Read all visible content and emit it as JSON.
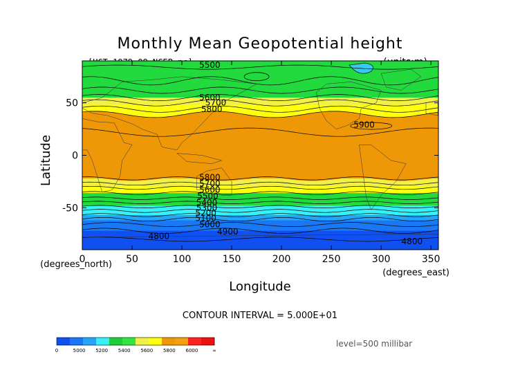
{
  "chart_data": {
    "type": "heatmap",
    "title": "Monthly Mean Geopotential height",
    "file_label": "[HGT_1979-08_NCEP.nc]",
    "units_label": "(units:m)",
    "xlabel": "Longitude",
    "ylabel": "Latitude",
    "x_unit_label": "(degrees_east)",
    "y_unit_label": "(degrees_north)",
    "xlim": [
      0,
      357.5
    ],
    "ylim": [
      -90,
      90
    ],
    "xticks": [
      0,
      50,
      100,
      150,
      200,
      250,
      300,
      350
    ],
    "yticks": [
      50,
      0,
      -50
    ],
    "contour_interval_label": "CONTOUR INTERVAL = 5.000E+01",
    "level_label": "level=500 millibar",
    "colorbar": {
      "tick_labels": [
        "0",
        "5000",
        "5200",
        "5400",
        "5600",
        "5800",
        "6000",
        "∞"
      ],
      "colors": [
        "#1050f0",
        "#1a78f5",
        "#24a5f8",
        "#38f0f8",
        "#1fcc3a",
        "#35e43c",
        "#f0f048",
        "#ffff10",
        "#ee9808",
        "#f4a010",
        "#ff2020",
        "#ee1010"
      ]
    },
    "zonal_bands": [
      {
        "from_lat": 90,
        "to_lat": 65,
        "range": "5400-5500",
        "color": "#22d93e"
      },
      {
        "from_lat": 65,
        "to_lat": 55,
        "range": "5500-5600",
        "color": "#22d93e"
      },
      {
        "from_lat": 55,
        "to_lat": 48,
        "range": "5600-5700",
        "color": "#f0f048"
      },
      {
        "from_lat": 48,
        "to_lat": 40,
        "range": "5700-5800",
        "color": "#ffff10"
      },
      {
        "from_lat": 40,
        "to_lat": -22,
        "range": "5800-5900",
        "color": "#ee9808"
      },
      {
        "from_lat": -22,
        "to_lat": -30,
        "range": "5700-5800",
        "color": "#f0f048"
      },
      {
        "from_lat": -30,
        "to_lat": -36,
        "range": "5600-5700",
        "color": "#ffff10"
      },
      {
        "from_lat": -36,
        "to_lat": -48,
        "range": "5500-5600",
        "color": "#22d93e"
      },
      {
        "from_lat": -48,
        "to_lat": -57,
        "range": "5300-5500",
        "color": "#38f0f8"
      },
      {
        "from_lat": -57,
        "to_lat": -62,
        "range": "5200-5300",
        "color": "#24a5f8"
      },
      {
        "from_lat": -62,
        "to_lat": -72,
        "range": "5000-5200",
        "color": "#1a78f5"
      },
      {
        "from_lat": -72,
        "to_lat": -90,
        "range": "4800-5000",
        "color": "#1050f0"
      }
    ],
    "contour_labels": [
      {
        "text": "5500",
        "lon": 128,
        "lat": 86
      },
      {
        "text": "5600",
        "lon": 128,
        "lat": 55
      },
      {
        "text": "5700",
        "lon": 134,
        "lat": 50
      },
      {
        "text": "5800",
        "lon": 130,
        "lat": 44
      },
      {
        "text": "5900",
        "lon": 283,
        "lat": 29
      },
      {
        "text": "5800",
        "lon": 128,
        "lat": -21
      },
      {
        "text": "5700",
        "lon": 128,
        "lat": -27
      },
      {
        "text": "5600",
        "lon": 128,
        "lat": -33
      },
      {
        "text": "5500",
        "lon": 126,
        "lat": -39
      },
      {
        "text": "5400",
        "lon": 125,
        "lat": -45
      },
      {
        "text": "5300",
        "lon": 125,
        "lat": -50
      },
      {
        "text": "5200",
        "lon": 124,
        "lat": -55
      },
      {
        "text": "5100",
        "lon": 124,
        "lat": -60
      },
      {
        "text": "5000",
        "lon": 128,
        "lat": -66
      },
      {
        "text": "4900",
        "lon": 146,
        "lat": -73
      },
      {
        "text": "4800",
        "lon": 77,
        "lat": -77
      },
      {
        "text": "4800",
        "lon": 331,
        "lat": -82
      }
    ]
  }
}
